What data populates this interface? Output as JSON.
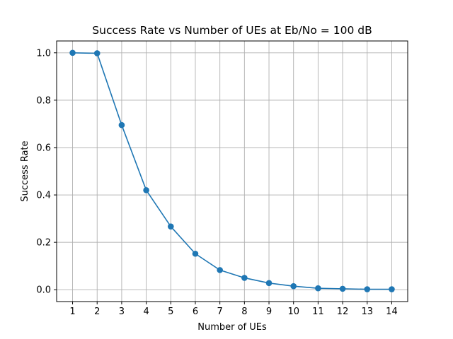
{
  "chart_data": {
    "type": "line",
    "title": "Success Rate vs Number of UEs at Eb/No = 100 dB",
    "xlabel": "Number of UEs",
    "ylabel": "Success Rate",
    "x": [
      1,
      2,
      3,
      4,
      5,
      6,
      7,
      8,
      9,
      10,
      11,
      12,
      13,
      14
    ],
    "series": [
      {
        "values": [
          1.0,
          0.998,
          0.695,
          0.42,
          0.267,
          0.152,
          0.083,
          0.05,
          0.028,
          0.015,
          0.006,
          0.004,
          0.002,
          0.002
        ],
        "color": "#1f77b4",
        "marker": "circle"
      }
    ],
    "xlim": [
      0.35,
      14.65
    ],
    "ylim": [
      -0.05,
      1.05
    ],
    "xticks": [
      "1",
      "2",
      "3",
      "4",
      "5",
      "6",
      "7",
      "8",
      "9",
      "10",
      "11",
      "12",
      "13",
      "14"
    ],
    "yticks": [
      "0.0",
      "0.2",
      "0.4",
      "0.6",
      "0.8",
      "1.0"
    ],
    "ytick_values": [
      0.0,
      0.2,
      0.4,
      0.6,
      0.8,
      1.0
    ],
    "grid": true
  }
}
